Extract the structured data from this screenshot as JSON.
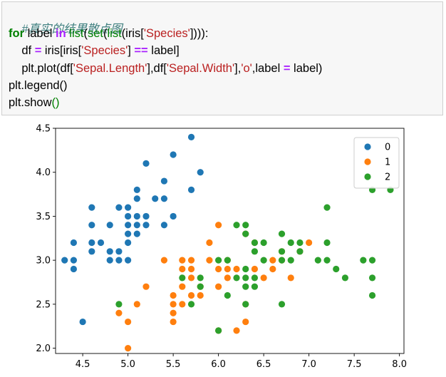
{
  "code_cell": {
    "line1": {
      "comment": "#真实的结果散点图"
    },
    "line2": {
      "kw_for": "for",
      "t1": " label ",
      "kw_in": "in",
      "t2": " ",
      "fn_list1": "list",
      "t3": "(",
      "fn_set": "set",
      "t4": "(",
      "fn_list2": "list",
      "t5": "(iris[",
      "str1": "'Species'",
      "t6": "])))",
      "t7": ":"
    },
    "line3": {
      "t1": "    df ",
      "op1": "=",
      "t2": " iris[iris[",
      "str1": "'Species'",
      "t3": "] ",
      "op2": "==",
      "t4": " label]"
    },
    "line4": {
      "t1": "    plt.plot(df[",
      "str1": "'Sepal.Length'",
      "t2": "],df[",
      "str2": "'Sepal.Width'",
      "t3": "],",
      "str3": "'o'",
      "t4": ",label ",
      "op1": "=",
      "t5": " label)"
    },
    "line5": {
      "text": "plt.legend()"
    },
    "line6": {
      "t1": "plt.show",
      "paren": "()"
    }
  },
  "chart_data": {
    "type": "scatter",
    "xlim": [
      4.2,
      8.05
    ],
    "ylim": [
      1.94,
      4.5
    ],
    "xticks": [
      "4.5",
      "5.0",
      "5.5",
      "6.0",
      "6.5",
      "7.0",
      "7.5",
      "8.0"
    ],
    "yticks": [
      "2.0",
      "2.5",
      "3.0",
      "3.5",
      "4.0",
      "4.5"
    ],
    "grid": false,
    "legend_position": "top-right",
    "series": [
      {
        "name": "0",
        "color": "#1f77b4",
        "points": [
          [
            4.3,
            3.0
          ],
          [
            4.4,
            2.9
          ],
          [
            4.4,
            3.0
          ],
          [
            4.4,
            3.2
          ],
          [
            4.5,
            2.3
          ],
          [
            4.6,
            3.1
          ],
          [
            4.6,
            3.2
          ],
          [
            4.6,
            3.4
          ],
          [
            4.6,
            3.6
          ],
          [
            4.7,
            3.2
          ],
          [
            4.8,
            3.0
          ],
          [
            4.8,
            3.1
          ],
          [
            4.8,
            3.4
          ],
          [
            4.9,
            3.0
          ],
          [
            4.9,
            3.1
          ],
          [
            4.9,
            3.6
          ],
          [
            5.0,
            3.0
          ],
          [
            5.0,
            3.2
          ],
          [
            5.0,
            3.3
          ],
          [
            5.0,
            3.4
          ],
          [
            5.0,
            3.5
          ],
          [
            5.0,
            3.6
          ],
          [
            5.1,
            3.3
          ],
          [
            5.1,
            3.4
          ],
          [
            5.1,
            3.5
          ],
          [
            5.1,
            3.7
          ],
          [
            5.1,
            3.8
          ],
          [
            5.2,
            3.4
          ],
          [
            5.2,
            3.5
          ],
          [
            5.2,
            4.1
          ],
          [
            5.3,
            3.7
          ],
          [
            5.4,
            3.4
          ],
          [
            5.4,
            3.7
          ],
          [
            5.4,
            3.9
          ],
          [
            5.5,
            3.5
          ],
          [
            5.5,
            4.2
          ],
          [
            5.7,
            3.8
          ],
          [
            5.7,
            4.4
          ],
          [
            5.8,
            4.0
          ]
        ]
      },
      {
        "name": "1",
        "color": "#ff7f0e",
        "points": [
          [
            4.9,
            2.4
          ],
          [
            5.0,
            2.0
          ],
          [
            5.0,
            2.3
          ],
          [
            5.1,
            2.5
          ],
          [
            5.2,
            2.7
          ],
          [
            5.4,
            3.0
          ],
          [
            5.5,
            2.3
          ],
          [
            5.5,
            2.4
          ],
          [
            5.5,
            2.5
          ],
          [
            5.5,
            2.6
          ],
          [
            5.6,
            2.5
          ],
          [
            5.6,
            2.7
          ],
          [
            5.6,
            2.9
          ],
          [
            5.6,
            3.0
          ],
          [
            5.7,
            2.6
          ],
          [
            5.7,
            2.8
          ],
          [
            5.7,
            2.9
          ],
          [
            5.7,
            3.0
          ],
          [
            5.8,
            2.6
          ],
          [
            5.8,
            2.7
          ],
          [
            5.9,
            3.0
          ],
          [
            5.9,
            3.2
          ],
          [
            6.0,
            2.2
          ],
          [
            6.0,
            2.7
          ],
          [
            6.0,
            2.9
          ],
          [
            6.0,
            3.4
          ],
          [
            6.1,
            2.8
          ],
          [
            6.1,
            2.9
          ],
          [
            6.1,
            3.0
          ],
          [
            6.2,
            2.2
          ],
          [
            6.2,
            2.9
          ],
          [
            6.3,
            2.3
          ],
          [
            6.3,
            2.5
          ],
          [
            6.3,
            3.3
          ],
          [
            6.4,
            2.9
          ],
          [
            6.4,
            3.2
          ],
          [
            6.5,
            2.8
          ],
          [
            6.6,
            2.9
          ],
          [
            6.6,
            3.0
          ],
          [
            6.7,
            3.0
          ],
          [
            6.7,
            3.1
          ],
          [
            6.8,
            2.8
          ],
          [
            6.9,
            3.1
          ],
          [
            7.0,
            3.2
          ]
        ]
      },
      {
        "name": "2",
        "color": "#2ca02c",
        "points": [
          [
            4.9,
            2.5
          ],
          [
            5.6,
            2.8
          ],
          [
            5.7,
            2.5
          ],
          [
            5.8,
            2.7
          ],
          [
            5.8,
            2.8
          ],
          [
            6.0,
            2.2
          ],
          [
            6.0,
            3.0
          ],
          [
            6.1,
            2.6
          ],
          [
            6.1,
            3.0
          ],
          [
            6.2,
            2.8
          ],
          [
            6.2,
            3.4
          ],
          [
            6.3,
            2.5
          ],
          [
            6.3,
            2.7
          ],
          [
            6.3,
            2.8
          ],
          [
            6.3,
            2.9
          ],
          [
            6.3,
            3.3
          ],
          [
            6.3,
            3.4
          ],
          [
            6.4,
            2.7
          ],
          [
            6.4,
            2.8
          ],
          [
            6.4,
            3.1
          ],
          [
            6.4,
            3.2
          ],
          [
            6.5,
            3.0
          ],
          [
            6.5,
            3.2
          ],
          [
            6.7,
            2.5
          ],
          [
            6.7,
            3.0
          ],
          [
            6.7,
            3.1
          ],
          [
            6.7,
            3.3
          ],
          [
            6.8,
            3.0
          ],
          [
            6.8,
            3.2
          ],
          [
            6.9,
            3.1
          ],
          [
            6.9,
            3.2
          ],
          [
            7.1,
            3.0
          ],
          [
            7.2,
            3.0
          ],
          [
            7.2,
            3.2
          ],
          [
            7.2,
            3.6
          ],
          [
            7.3,
            2.9
          ],
          [
            7.4,
            2.8
          ],
          [
            7.6,
            3.0
          ],
          [
            7.7,
            2.6
          ],
          [
            7.7,
            2.8
          ],
          [
            7.7,
            3.0
          ],
          [
            7.7,
            3.8
          ],
          [
            7.9,
            3.8
          ]
        ]
      }
    ]
  }
}
